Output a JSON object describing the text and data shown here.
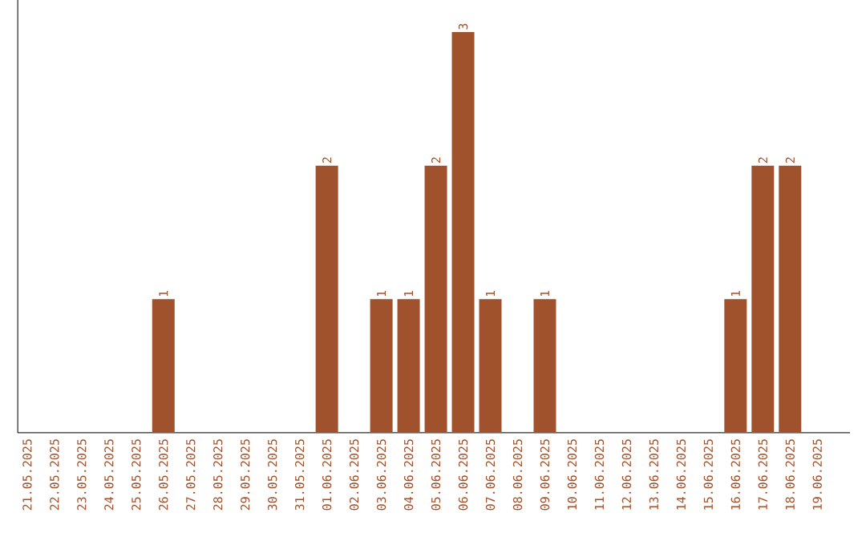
{
  "chart_data": {
    "type": "bar",
    "categories": [
      "21.05.2025",
      "22.05.2025",
      "23.05.2025",
      "24.05.2025",
      "25.05.2025",
      "26.05.2025",
      "27.05.2025",
      "28.05.2025",
      "29.05.2025",
      "30.05.2025",
      "31.05.2025",
      "01.06.2025",
      "02.06.2025",
      "03.06.2025",
      "04.06.2025",
      "05.06.2025",
      "06.06.2025",
      "07.06.2025",
      "08.06.2025",
      "09.06.2025",
      "10.06.2025",
      "11.06.2025",
      "12.06.2025",
      "13.06.2025",
      "14.06.2025",
      "15.06.2025",
      "16.06.2025",
      "17.06.2025",
      "18.06.2025",
      "19.06.2025"
    ],
    "values": [
      0,
      0,
      0,
      0,
      0,
      1,
      0,
      0,
      0,
      0,
      0,
      2,
      0,
      1,
      1,
      2,
      3,
      1,
      0,
      1,
      0,
      0,
      0,
      0,
      0,
      0,
      1,
      2,
      2,
      0
    ],
    "value_labels": [
      null,
      null,
      null,
      null,
      null,
      "1",
      null,
      null,
      null,
      null,
      null,
      "2",
      null,
      "1",
      "1",
      "2",
      "3",
      "1",
      null,
      "1",
      null,
      null,
      null,
      null,
      null,
      null,
      "1",
      "2",
      "2",
      null
    ],
    "color": "#a0522d"
  }
}
